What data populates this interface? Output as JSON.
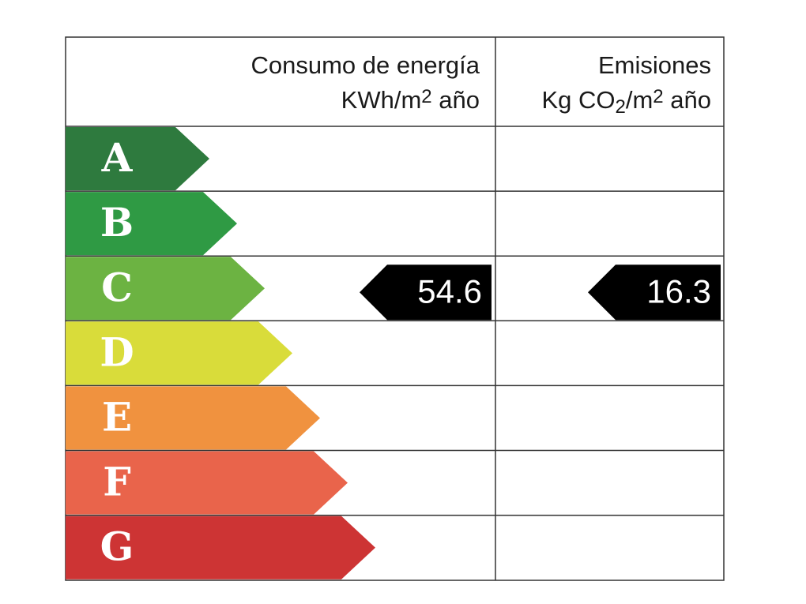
{
  "header": {
    "energy": {
      "line1": "Consumo de energía",
      "line2": [
        "KWh/m",
        "2",
        " año"
      ]
    },
    "emissions": {
      "line1": "Emisiones",
      "line2": [
        "Kg CO",
        "2",
        "/m",
        "2",
        " año"
      ]
    }
  },
  "ratings": [
    {
      "label": "A",
      "color": "#2e7a3e"
    },
    {
      "label": "B",
      "color": "#2f9a44"
    },
    {
      "label": "C",
      "color": "#6cb342"
    },
    {
      "label": "D",
      "color": "#d9dc3a"
    },
    {
      "label": "E",
      "color": "#f0923f"
    },
    {
      "label": "F",
      "color": "#e9644b"
    },
    {
      "label": "G",
      "color": "#cd3434"
    }
  ],
  "energy": {
    "rating": "C",
    "value": "54.6"
  },
  "emissions": {
    "rating": "C",
    "value": "16.3"
  }
}
